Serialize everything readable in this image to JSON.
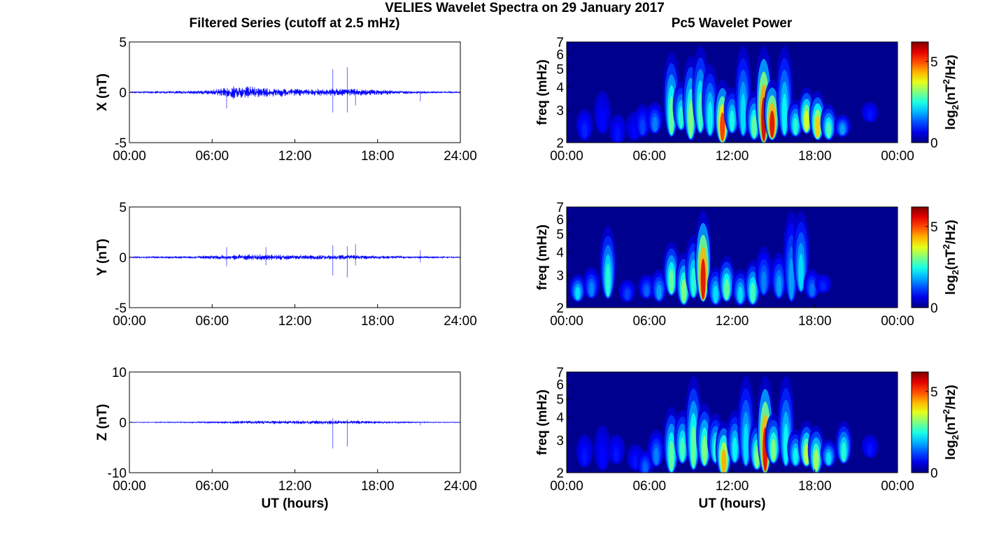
{
  "figure": {
    "suptitle": "VELIES Wavelet Spectra on 29 January 2017",
    "left_title": "Filtered Series (cutoff at 2.5 mHz)",
    "right_title": "Pc5 Wavelet Power"
  },
  "colors": {
    "trace": "#0000ff",
    "axis": "#000000",
    "heatmap_background": "#00008f",
    "colormap": "jet"
  },
  "chart_data": [
    {
      "type": "line",
      "id": "x-series",
      "ylabel": "X (nT)",
      "xlabel": "",
      "ylim": [
        -5,
        5
      ],
      "yticks": [
        "5",
        "0",
        "-5"
      ],
      "yticks_values": [
        5,
        0,
        -5
      ],
      "xticks": [
        "00:00",
        "06:00",
        "12:00",
        "18:00",
        "24:00"
      ],
      "xlim_hours": [
        0,
        24
      ],
      "grid": false,
      "baseline_amplitude": [
        [
          0,
          0.05
        ],
        [
          2,
          0.1
        ],
        [
          5,
          0.15
        ],
        [
          6.5,
          0.3
        ],
        [
          7.5,
          0.6
        ],
        [
          9,
          0.5
        ],
        [
          10.5,
          0.4
        ],
        [
          12,
          0.35
        ],
        [
          13.5,
          0.3
        ],
        [
          15,
          0.35
        ],
        [
          16.5,
          0.3
        ],
        [
          18,
          0.25
        ],
        [
          19.5,
          0.15
        ],
        [
          21,
          0.1
        ],
        [
          24,
          0.05
        ]
      ],
      "spikes": [
        {
          "t": 7.05,
          "y": -1.6
        },
        {
          "t": 14.75,
          "y": 2.3
        },
        {
          "t": 14.75,
          "y": -2.0
        },
        {
          "t": 15.8,
          "y": 2.5
        },
        {
          "t": 15.8,
          "y": -2.0
        },
        {
          "t": 16.4,
          "y": -1.3
        },
        {
          "t": 21.1,
          "y": -0.9
        }
      ]
    },
    {
      "type": "line",
      "id": "y-series",
      "ylabel": "Y (nT)",
      "xlabel": "",
      "ylim": [
        -5,
        5
      ],
      "yticks": [
        "5",
        "0",
        "-5"
      ],
      "yticks_values": [
        5,
        0,
        -5
      ],
      "xticks": [
        "00:00",
        "06:00",
        "12:00",
        "18:00",
        "24:00"
      ],
      "xlim_hours": [
        0,
        24
      ],
      "grid": false,
      "baseline_amplitude": [
        [
          0,
          0.05
        ],
        [
          2,
          0.08
        ],
        [
          5,
          0.1
        ],
        [
          6.5,
          0.2
        ],
        [
          8,
          0.25
        ],
        [
          10,
          0.3
        ],
        [
          12,
          0.2
        ],
        [
          14,
          0.2
        ],
        [
          16,
          0.2
        ],
        [
          18,
          0.15
        ],
        [
          20,
          0.1
        ],
        [
          24,
          0.05
        ]
      ],
      "spikes": [
        {
          "t": 7.05,
          "y": 1.0
        },
        {
          "t": 7.05,
          "y": -0.9
        },
        {
          "t": 9.9,
          "y": 1.0
        },
        {
          "t": 9.9,
          "y": -0.8
        },
        {
          "t": 14.75,
          "y": 1.2
        },
        {
          "t": 14.75,
          "y": -1.8
        },
        {
          "t": 15.8,
          "y": 1.1
        },
        {
          "t": 15.8,
          "y": -2.0
        },
        {
          "t": 16.4,
          "y": 1.3
        },
        {
          "t": 16.4,
          "y": -0.8
        },
        {
          "t": 21.1,
          "y": 0.7
        },
        {
          "t": 21.1,
          "y": -0.5
        }
      ]
    },
    {
      "type": "line",
      "id": "z-series",
      "ylabel": "Z (nT)",
      "xlabel": "UT (hours)",
      "ylim": [
        -10,
        10
      ],
      "yticks": [
        "10",
        "0",
        "-10"
      ],
      "yticks_values": [
        10,
        0,
        -10
      ],
      "xticks": [
        "00:00",
        "06:00",
        "12:00",
        "18:00",
        "24:00"
      ],
      "xlim_hours": [
        0,
        24
      ],
      "grid": false,
      "baseline_amplitude": [
        [
          0,
          0.05
        ],
        [
          3,
          0.08
        ],
        [
          6,
          0.15
        ],
        [
          9,
          0.3
        ],
        [
          12,
          0.3
        ],
        [
          15,
          0.35
        ],
        [
          18,
          0.2
        ],
        [
          21,
          0.1
        ],
        [
          24,
          0.05
        ]
      ],
      "spikes": [
        {
          "t": 14.75,
          "y": 0.8
        },
        {
          "t": 14.75,
          "y": -5.2
        },
        {
          "t": 15.8,
          "y": 0.6
        },
        {
          "t": 15.8,
          "y": -4.8
        },
        {
          "t": 21.1,
          "y": -0.6
        }
      ]
    },
    {
      "type": "heatmap",
      "id": "x-wavelet",
      "ylabel": "freq (mHz)",
      "xlabel": "",
      "ylim_mhz": [
        2,
        7
      ],
      "yscale": "log",
      "yticks": [
        "2",
        "3",
        "4",
        "5",
        "6",
        "7"
      ],
      "yticks_values": [
        2,
        3,
        4,
        5,
        6,
        7
      ],
      "xticks": [
        "00:00",
        "06:00",
        "12:00",
        "18:00",
        "00:00"
      ],
      "xlim_hours": [
        0,
        24
      ],
      "colorbar_label": "log2(nT^2/Hz)",
      "colorbar_range": [
        0,
        6.2
      ],
      "colorbar_ticks": [
        "5",
        "0"
      ],
      "colorbar_ticks_values": [
        5,
        0
      ],
      "blobs": [
        {
          "t": 1.3,
          "f": 2.4,
          "power": 1.0,
          "fmax": 3.2
        },
        {
          "t": 2.6,
          "f": 2.6,
          "power": 0.8,
          "fmax": 4.0
        },
        {
          "t": 3.7,
          "f": 2.3,
          "power": 0.9,
          "fmax": 3.0
        },
        {
          "t": 4.9,
          "f": 2.4,
          "power": 0.8,
          "fmax": 3.1
        },
        {
          "t": 5.5,
          "f": 2.5,
          "power": 1.2,
          "fmax": 3.4
        },
        {
          "t": 6.4,
          "f": 2.6,
          "power": 1.6,
          "fmax": 3.5
        },
        {
          "t": 7.6,
          "f": 2.5,
          "power": 3.0,
          "fmax": 6.5
        },
        {
          "t": 8.3,
          "f": 2.7,
          "power": 2.6,
          "fmax": 4.5
        },
        {
          "t": 9.0,
          "f": 2.4,
          "power": 3.2,
          "fmax": 6.2
        },
        {
          "t": 9.7,
          "f": 2.6,
          "power": 2.8,
          "fmax": 7.0
        },
        {
          "t": 10.4,
          "f": 2.5,
          "power": 2.4,
          "fmax": 5.6
        },
        {
          "t": 11.3,
          "f": 2.3,
          "power": 5.2,
          "fmax": 4.6
        },
        {
          "t": 12.0,
          "f": 2.6,
          "power": 2.5,
          "fmax": 4.2
        },
        {
          "t": 12.8,
          "f": 2.5,
          "power": 2.2,
          "fmax": 7.0
        },
        {
          "t": 13.6,
          "f": 2.4,
          "power": 3.0,
          "fmax": 4.0
        },
        {
          "t": 14.3,
          "f": 2.3,
          "power": 5.8,
          "fmax": 7.0
        },
        {
          "t": 14.9,
          "f": 2.4,
          "power": 5.6,
          "fmax": 4.6
        },
        {
          "t": 15.8,
          "f": 2.5,
          "power": 2.4,
          "fmax": 7.0
        },
        {
          "t": 16.6,
          "f": 2.5,
          "power": 2.6,
          "fmax": 3.6
        },
        {
          "t": 17.4,
          "f": 2.6,
          "power": 3.8,
          "fmax": 4.2
        },
        {
          "t": 18.2,
          "f": 2.4,
          "power": 4.2,
          "fmax": 4.0
        },
        {
          "t": 19.0,
          "f": 2.4,
          "power": 2.8,
          "fmax": 3.4
        },
        {
          "t": 20.0,
          "f": 2.5,
          "power": 1.8,
          "fmax": 3.0
        },
        {
          "t": 22.0,
          "f": 3.0,
          "power": 0.9,
          "fmax": 3.5
        }
      ]
    },
    {
      "type": "heatmap",
      "id": "y-wavelet",
      "ylabel": "freq (mHz)",
      "xlabel": "",
      "ylim_mhz": [
        2,
        7
      ],
      "yscale": "log",
      "yticks": [
        "2",
        "3",
        "4",
        "5",
        "6",
        "7"
      ],
      "yticks_values": [
        2,
        3,
        4,
        5,
        6,
        7
      ],
      "xticks": [
        "00:00",
        "06:00",
        "12:00",
        "18:00",
        "00:00"
      ],
      "xlim_hours": [
        0,
        24
      ],
      "colorbar_label": "log2(nT^2/Hz)",
      "colorbar_range": [
        0,
        6.2
      ],
      "colorbar_ticks": [
        "5",
        "0"
      ],
      "colorbar_ticks_values": [
        5,
        0
      ],
      "blobs": [
        {
          "t": 0.8,
          "f": 2.5,
          "power": 2.2,
          "fmax": 3.2
        },
        {
          "t": 1.8,
          "f": 2.6,
          "power": 1.6,
          "fmax": 3.5
        },
        {
          "t": 3.0,
          "f": 2.6,
          "power": 2.6,
          "fmax": 5.8
        },
        {
          "t": 4.4,
          "f": 2.5,
          "power": 1.2,
          "fmax": 3.0
        },
        {
          "t": 5.8,
          "f": 2.6,
          "power": 1.4,
          "fmax": 3.2
        },
        {
          "t": 6.7,
          "f": 2.5,
          "power": 1.8,
          "fmax": 3.4
        },
        {
          "t": 7.6,
          "f": 2.7,
          "power": 3.0,
          "fmax": 4.8
        },
        {
          "t": 8.5,
          "f": 2.4,
          "power": 3.2,
          "fmax": 4.2
        },
        {
          "t": 9.2,
          "f": 2.6,
          "power": 2.6,
          "fmax": 5.2
        },
        {
          "t": 9.9,
          "f": 2.5,
          "power": 5.6,
          "fmax": 7.0
        },
        {
          "t": 10.8,
          "f": 2.4,
          "power": 2.2,
          "fmax": 3.5
        },
        {
          "t": 11.6,
          "f": 2.5,
          "power": 3.0,
          "fmax": 4.0
        },
        {
          "t": 12.6,
          "f": 2.4,
          "power": 2.2,
          "fmax": 3.4
        },
        {
          "t": 13.5,
          "f": 2.4,
          "power": 2.8,
          "fmax": 3.8
        },
        {
          "t": 14.3,
          "f": 2.7,
          "power": 1.6,
          "fmax": 4.5
        },
        {
          "t": 15.4,
          "f": 2.6,
          "power": 1.8,
          "fmax": 4.2
        },
        {
          "t": 16.3,
          "f": 2.5,
          "power": 1.8,
          "fmax": 7.0
        },
        {
          "t": 17.0,
          "f": 2.8,
          "power": 2.2,
          "fmax": 7.0
        },
        {
          "t": 17.8,
          "f": 2.6,
          "power": 1.5,
          "fmax": 3.4
        },
        {
          "t": 18.6,
          "f": 2.8,
          "power": 1.0,
          "fmax": 3.2
        }
      ]
    },
    {
      "type": "heatmap",
      "id": "z-wavelet",
      "ylabel": "freq (mHz)",
      "xlabel": "UT (hours)",
      "ylim_mhz": [
        2,
        7
      ],
      "yscale": "log",
      "yticks": [
        "2",
        "3",
        "4",
        "5",
        "6",
        "7"
      ],
      "yticks_values": [
        2,
        3,
        4,
        5,
        6,
        7
      ],
      "xticks": [
        "00:00",
        "06:00",
        "12:00",
        "18:00",
        "00:00"
      ],
      "xlim_hours": [
        0,
        24
      ],
      "colorbar_label": "log2(nT^2/Hz)",
      "colorbar_range": [
        0,
        6.2
      ],
      "colorbar_ticks": [
        "5",
        "0"
      ],
      "colorbar_ticks_values": [
        5,
        0
      ],
      "blobs": [
        {
          "t": 1.3,
          "f": 2.5,
          "power": 0.9,
          "fmax": 3.4
        },
        {
          "t": 2.6,
          "f": 2.4,
          "power": 0.8,
          "fmax": 3.8
        },
        {
          "t": 3.6,
          "f": 2.6,
          "power": 0.9,
          "fmax": 3.4
        },
        {
          "t": 5.0,
          "f": 2.4,
          "power": 0.9,
          "fmax": 3.0
        },
        {
          "t": 5.7,
          "f": 2.2,
          "power": 1.4,
          "fmax": 2.8
        },
        {
          "t": 6.5,
          "f": 2.5,
          "power": 1.6,
          "fmax": 3.6
        },
        {
          "t": 7.6,
          "f": 2.3,
          "power": 3.0,
          "fmax": 4.8
        },
        {
          "t": 8.4,
          "f": 2.6,
          "power": 2.8,
          "fmax": 4.6
        },
        {
          "t": 9.2,
          "f": 2.4,
          "power": 3.0,
          "fmax": 7.0
        },
        {
          "t": 10.0,
          "f": 2.5,
          "power": 3.2,
          "fmax": 5.0
        },
        {
          "t": 10.8,
          "f": 2.6,
          "power": 2.6,
          "fmax": 4.4
        },
        {
          "t": 11.4,
          "f": 2.2,
          "power": 4.4,
          "fmax": 4.0
        },
        {
          "t": 12.2,
          "f": 2.6,
          "power": 2.4,
          "fmax": 4.6
        },
        {
          "t": 13.0,
          "f": 2.5,
          "power": 2.2,
          "fmax": 7.0
        },
        {
          "t": 13.8,
          "f": 2.4,
          "power": 3.2,
          "fmax": 4.0
        },
        {
          "t": 14.4,
          "f": 2.3,
          "power": 5.6,
          "fmax": 7.0
        },
        {
          "t": 15.0,
          "f": 2.6,
          "power": 3.2,
          "fmax": 4.4
        },
        {
          "t": 15.9,
          "f": 2.5,
          "power": 2.4,
          "fmax": 7.0
        },
        {
          "t": 16.6,
          "f": 2.5,
          "power": 2.4,
          "fmax": 3.6
        },
        {
          "t": 17.4,
          "f": 2.5,
          "power": 3.6,
          "fmax": 4.0
        },
        {
          "t": 18.1,
          "f": 2.3,
          "power": 3.4,
          "fmax": 3.8
        },
        {
          "t": 19.0,
          "f": 2.5,
          "power": 2.2,
          "fmax": 3.2
        },
        {
          "t": 20.1,
          "f": 2.6,
          "power": 2.6,
          "fmax": 4.0
        },
        {
          "t": 22.0,
          "f": 2.8,
          "power": 0.9,
          "fmax": 3.4
        }
      ]
    }
  ]
}
